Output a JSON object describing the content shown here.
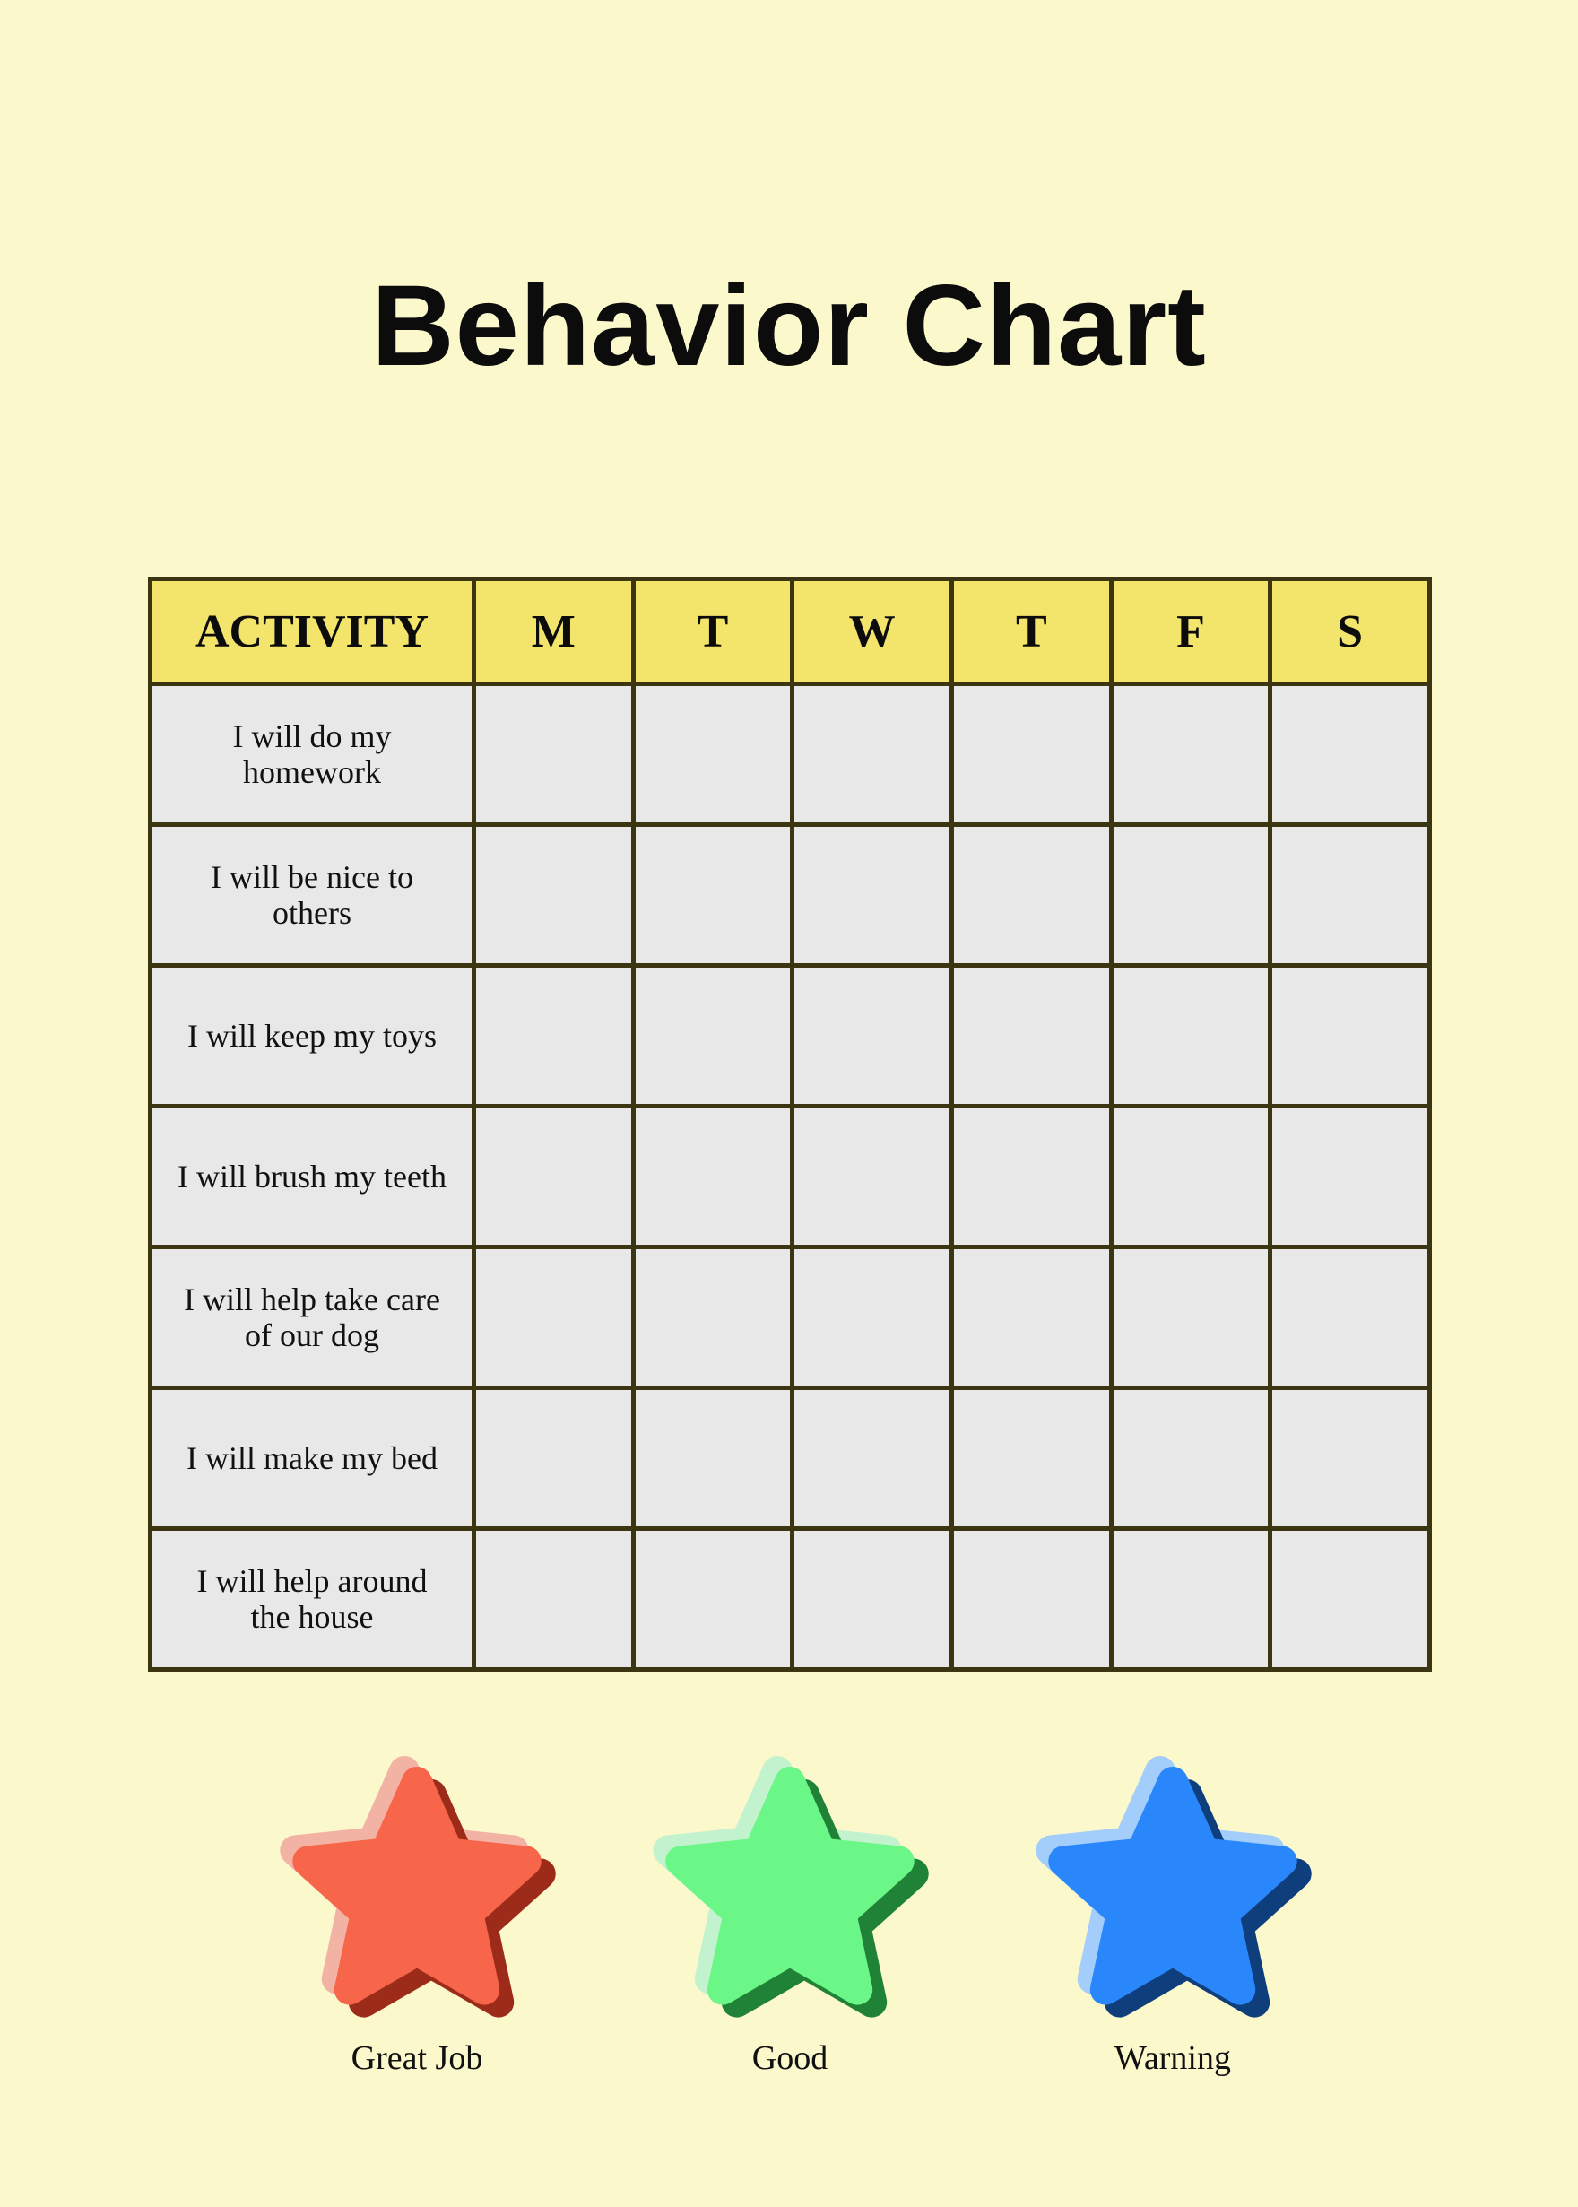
{
  "title": "Behavior Chart",
  "table": {
    "headers": [
      "ACTIVITY",
      "M",
      "T",
      "W",
      "T",
      "F",
      "S"
    ],
    "rows": [
      "I will do my homework",
      "I will be nice to others",
      "I will keep my toys",
      "I will brush my teeth",
      "I will help take care of our dog",
      "I will make my bed",
      "I will help around the house"
    ]
  },
  "legend": [
    {
      "label": "Great Job",
      "icon": "red-star-icon",
      "color": "#f7654b",
      "shadow": "#9c2b1a",
      "highlight": "#f2b3a5"
    },
    {
      "label": "Good",
      "icon": "green-star-icon",
      "color": "#6bf787",
      "shadow": "#1f8237",
      "highlight": "#c3f2cf"
    },
    {
      "label": "Warning",
      "icon": "blue-star-icon",
      "color": "#2a87fb",
      "shadow": "#0e3f7c",
      "highlight": "#a3cdfb"
    }
  ],
  "colors": {
    "background": "#fbf8cc",
    "header": "#f3e46c",
    "cell": "#e8e8e8",
    "border": "#3b3511"
  }
}
